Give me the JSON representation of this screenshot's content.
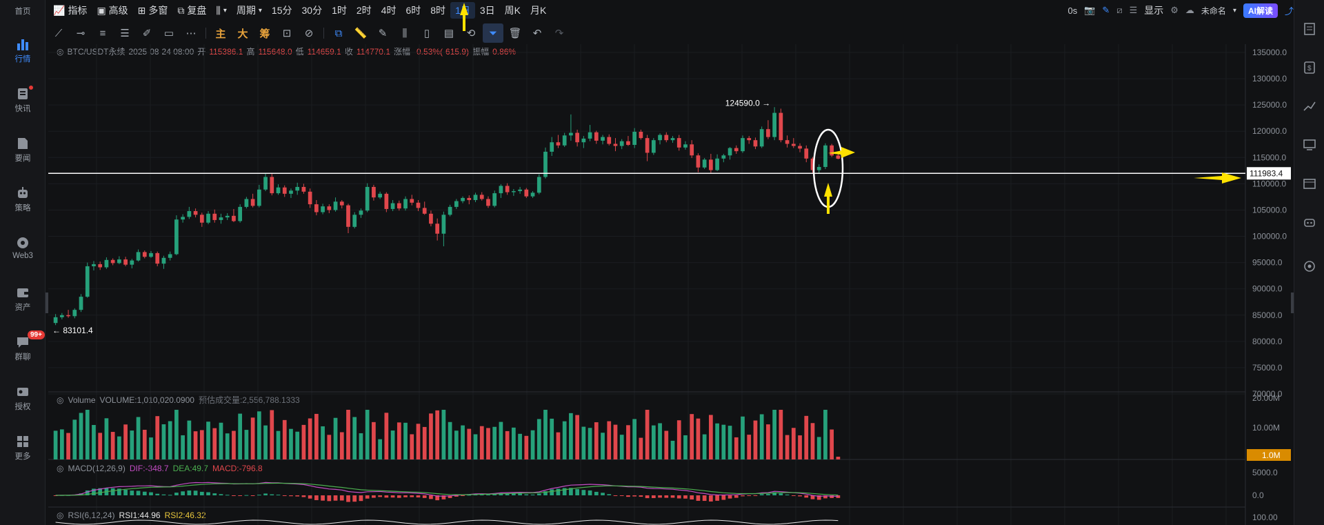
{
  "leftnav": {
    "items": [
      {
        "label": "首页"
      },
      {
        "label": "行情"
      },
      {
        "label": "快讯"
      },
      {
        "label": "要闻"
      },
      {
        "label": "策略"
      },
      {
        "label": "Web3"
      },
      {
        "label": "资产"
      },
      {
        "label": "群聊",
        "badge": "99+"
      },
      {
        "label": "授权"
      },
      {
        "label": "更多"
      }
    ]
  },
  "toolbar": {
    "indicator": "指标",
    "advanced": "高级",
    "multiwindow": "多窗",
    "replay": "复盘",
    "period": "周期",
    "intervals": [
      "15分",
      "30分",
      "1时",
      "2时",
      "4时",
      "6时",
      "8时",
      "1日",
      "3日",
      "周K",
      "月K"
    ],
    "active_interval": "1日",
    "right": {
      "timer": "0s",
      "display": "显示",
      "layout_name": "未命名",
      "ai": "AI解读"
    }
  },
  "drawing": {
    "labels": {
      "main": "主",
      "big": "大",
      "chips": "筹"
    }
  },
  "info": {
    "symbol": "BTC/USDT永续",
    "datetime": "2025-08-24 08:00",
    "open_label": "开",
    "open": "115386.1",
    "high_label": "高",
    "high": "115648.0",
    "low_label": "低",
    "low": "114659.1",
    "close_label": "收",
    "close": "114770.1",
    "change_label": "涨幅",
    "change": "-0.53%(-615.9)",
    "amp_label": "振幅",
    "amp": "0.86%"
  },
  "volume_info": {
    "label": "Volume",
    "value": "VOLUME:1,010,020.0900",
    "forecast": "预估成交量:2,556,788.1333"
  },
  "macd_info": {
    "label": "MACD(12,26,9)",
    "dif": "DIF:-348.7",
    "dea": "DEA:49.7",
    "macd": "MACD:-796.8"
  },
  "rsi_info": {
    "label": "RSI(6,12,24)",
    "rsi1": "RSI1:44.96",
    "rsi2": "RSI2:46.32"
  },
  "price_axis": [
    "135000.0",
    "130000.0",
    "125000.0",
    "120000.0",
    "115000.0",
    "110000.0",
    "105000.0",
    "100000.0",
    "95000.0",
    "90000.0",
    "85000.0",
    "80000.0",
    "75000.0",
    "70000.0"
  ],
  "volume_axis": [
    "20.00M",
    "10.00M"
  ],
  "volume_tag": "1.0M",
  "macd_axis": [
    "5000.0",
    "0.0"
  ],
  "rsi_axis": [
    "100.00"
  ],
  "hline_price": "111983.4",
  "high_marker": "124590.0",
  "low_marker": "83101.4",
  "colors": {
    "up": "#26a17b",
    "down": "#e0474c",
    "accent": "#3f8cff",
    "annotation": "#ffe200"
  },
  "chart_data": {
    "type": "candlestick",
    "title": "BTC/USDT永续",
    "interval": "1日",
    "ohlc": [
      [
        83500,
        85200,
        83101.4,
        84600
      ],
      [
        84600,
        85400,
        84200,
        85000
      ],
      [
        85000,
        86000,
        84500,
        84800
      ],
      [
        84800,
        86300,
        84400,
        86000
      ],
      [
        86000,
        89000,
        85600,
        88500
      ],
      [
        88500,
        95000,
        88300,
        94300
      ],
      [
        94300,
        95300,
        93500,
        94700
      ],
      [
        94700,
        95200,
        93600,
        94100
      ],
      [
        94100,
        96000,
        93800,
        95500
      ],
      [
        95500,
        95800,
        94500,
        94900
      ],
      [
        94900,
        96200,
        94700,
        95600
      ],
      [
        95600,
        96100,
        94300,
        94600
      ],
      [
        94600,
        95700,
        93900,
        95400
      ],
      [
        95400,
        97500,
        95200,
        97000
      ],
      [
        97000,
        97300,
        95800,
        96100
      ],
      [
        96100,
        97200,
        95900,
        96800
      ],
      [
        96800,
        97100,
        94300,
        94800
      ],
      [
        94800,
        96300,
        93800,
        95900
      ],
      [
        95900,
        97100,
        95400,
        96600
      ],
      [
        96600,
        104000,
        96400,
        103200
      ],
      [
        103200,
        104200,
        102600,
        103700
      ],
      [
        103700,
        105600,
        103300,
        104800
      ],
      [
        104800,
        105300,
        103600,
        104100
      ],
      [
        104100,
        104500,
        101800,
        102600
      ],
      [
        102600,
        104800,
        102300,
        104300
      ],
      [
        104300,
        105100,
        102600,
        103100
      ],
      [
        103100,
        104300,
        102400,
        103600
      ],
      [
        103600,
        104400,
        103100,
        103900
      ],
      [
        103900,
        105200,
        102700,
        102900
      ],
      [
        102900,
        106100,
        102600,
        105600
      ],
      [
        105600,
        107500,
        105300,
        107100
      ],
      [
        107100,
        108100,
        105500,
        105800
      ],
      [
        105800,
        109800,
        105500,
        108900
      ],
      [
        108900,
        111900,
        108600,
        111300
      ],
      [
        111300,
        112000,
        107800,
        108200
      ],
      [
        108200,
        109900,
        107900,
        109300
      ],
      [
        109300,
        109700,
        107500,
        108100
      ],
      [
        108100,
        109100,
        107300,
        108700
      ],
      [
        108700,
        110200,
        107900,
        109400
      ],
      [
        109400,
        110000,
        108100,
        108500
      ],
      [
        108500,
        109100,
        105400,
        106100
      ],
      [
        106100,
        106900,
        104000,
        104600
      ],
      [
        104600,
        106200,
        104200,
        105700
      ],
      [
        105700,
        106100,
        104400,
        105000
      ],
      [
        105000,
        107400,
        104700,
        106600
      ],
      [
        106600,
        106900,
        105300,
        105900
      ],
      [
        105900,
        106200,
        100600,
        101800
      ],
      [
        101800,
        104600,
        101500,
        104100
      ],
      [
        104100,
        105300,
        103500,
        104900
      ],
      [
        104900,
        110100,
        104600,
        109400
      ],
      [
        109400,
        109800,
        106800,
        107400
      ],
      [
        107400,
        108500,
        107100,
        108100
      ],
      [
        108100,
        108400,
        104600,
        105200
      ],
      [
        105200,
        106900,
        104800,
        106300
      ],
      [
        106300,
        106800,
        104900,
        105300
      ],
      [
        105300,
        107600,
        104900,
        107100
      ],
      [
        107100,
        107900,
        105900,
        106400
      ],
      [
        106400,
        106900,
        104800,
        105400
      ],
      [
        105400,
        106600,
        104100,
        104300
      ],
      [
        104300,
        104900,
        101900,
        102400
      ],
      [
        102400,
        103400,
        99200,
        100500
      ],
      [
        100500,
        104700,
        98100,
        104100
      ],
      [
        104100,
        106000,
        103800,
        105600
      ],
      [
        105600,
        107100,
        105200,
        106700
      ],
      [
        106700,
        107600,
        106300,
        107300
      ],
      [
        107300,
        107800,
        106100,
        106900
      ],
      [
        106900,
        108300,
        106500,
        107900
      ],
      [
        107900,
        108400,
        106800,
        107100
      ],
      [
        107100,
        107600,
        105400,
        105800
      ],
      [
        105800,
        108700,
        105500,
        108200
      ],
      [
        108200,
        109900,
        107300,
        109600
      ],
      [
        109600,
        110100,
        107900,
        108400
      ],
      [
        108400,
        109000,
        107700,
        108600
      ],
      [
        108600,
        109400,
        108100,
        108900
      ],
      [
        108900,
        109200,
        107300,
        107600
      ],
      [
        107600,
        108600,
        107300,
        108300
      ],
      [
        108300,
        111800,
        108000,
        111300
      ],
      [
        111300,
        116900,
        111000,
        116100
      ],
      [
        116100,
        118900,
        115300,
        117900
      ],
      [
        117900,
        119300,
        116800,
        117300
      ],
      [
        117300,
        119700,
        117000,
        119200
      ],
      [
        119200,
        123200,
        118200,
        119700
      ],
      [
        119700,
        120300,
        117100,
        117900
      ],
      [
        117900,
        119100,
        116800,
        118600
      ],
      [
        118600,
        121200,
        118100,
        119800
      ],
      [
        119800,
        120100,
        117600,
        118200
      ],
      [
        118200,
        119300,
        117500,
        118900
      ],
      [
        118900,
        119400,
        117300,
        117600
      ],
      [
        117600,
        118700,
        116200,
        117200
      ],
      [
        117200,
        118500,
        116600,
        118100
      ],
      [
        118100,
        119100,
        117200,
        117400
      ],
      [
        117400,
        120600,
        116800,
        119900
      ],
      [
        119900,
        120300,
        118400,
        118700
      ],
      [
        118700,
        119300,
        114300,
        115900
      ],
      [
        115900,
        118700,
        115500,
        118300
      ],
      [
        118300,
        119600,
        117500,
        119300
      ],
      [
        119300,
        119800,
        117900,
        118300
      ],
      [
        118300,
        119100,
        117800,
        118700
      ],
      [
        118700,
        119300,
        116300,
        116900
      ],
      [
        116900,
        118100,
        116500,
        117500
      ],
      [
        117500,
        118300,
        114900,
        115400
      ],
      [
        115400,
        115800,
        112200,
        113100
      ],
      [
        113100,
        114900,
        112800,
        114600
      ],
      [
        114600,
        115700,
        112100,
        112600
      ],
      [
        112600,
        115600,
        112400,
        114800
      ],
      [
        114800,
        115700,
        114100,
        115400
      ],
      [
        115400,
        117000,
        114600,
        116800
      ],
      [
        116800,
        117300,
        115700,
        116200
      ],
      [
        116200,
        119200,
        115900,
        118700
      ],
      [
        118700,
        119100,
        117600,
        118300
      ],
      [
        118300,
        118800,
        116600,
        117100
      ],
      [
        117100,
        120900,
        116800,
        120400
      ],
      [
        120400,
        122100,
        118500,
        118900
      ],
      [
        118900,
        124590,
        118300,
        123500
      ],
      [
        123500,
        124300,
        117900,
        118300
      ],
      [
        118300,
        119200,
        116900,
        117600
      ],
      [
        117600,
        118700,
        116800,
        117200
      ],
      [
        117200,
        117700,
        116000,
        116700
      ],
      [
        116700,
        117300,
        114100,
        114800
      ],
      [
        114800,
        115100,
        112100,
        112600
      ],
      [
        112600,
        113700,
        111900,
        113200
      ],
      [
        113200,
        117700,
        112800,
        117300
      ],
      [
        117300,
        117600,
        115100,
        115386.1
      ],
      [
        115386.1,
        115648,
        114659.1,
        114770.1
      ]
    ],
    "volume_unit": "M",
    "macd": {
      "dif": -348.7,
      "dea": 49.7,
      "macd": -796.8
    },
    "rsi": {
      "rsi1": 44.96,
      "rsi2": 46.32
    },
    "ylim": [
      70000,
      135000
    ]
  }
}
